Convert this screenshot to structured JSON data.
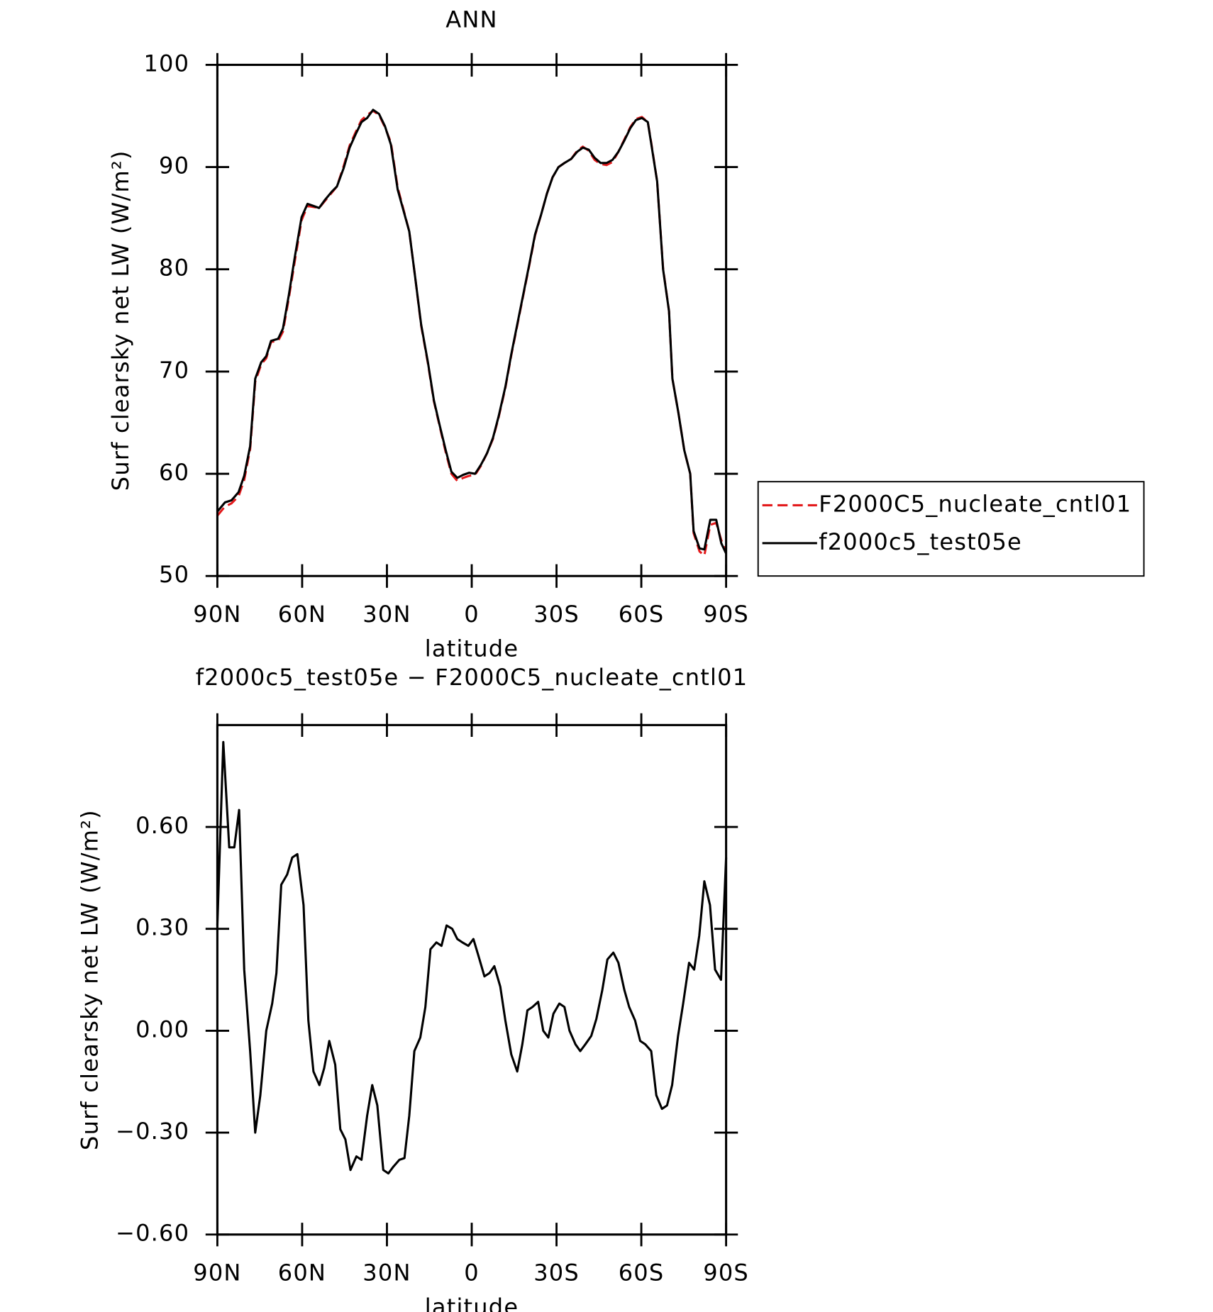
{
  "chart_data": [
    {
      "type": "line",
      "title": "ANN",
      "xlabel": "latitude",
      "ylabel": "Surf clearsky net LW (W/m²)",
      "x": [
        90,
        87.3,
        85,
        82.5,
        80.5,
        78.4,
        76.6,
        74.5,
        72.7,
        71,
        68.5,
        66.8,
        64.7,
        62.6,
        60.2,
        58.1,
        56,
        54,
        51.9,
        49.5,
        47.7,
        45.3,
        43.2,
        41.1,
        39,
        37,
        34.9,
        32.8,
        30.7,
        28.6,
        26.2,
        24.1,
        22.1,
        20,
        17.9,
        15.5,
        13.4,
        11.3,
        9.2,
        7.2,
        5.1,
        3,
        0.9,
        -1.2,
        -3.3,
        -5.4,
        -7.5,
        -9.5,
        -11.9,
        -14,
        -16.1,
        -18.2,
        -20.3,
        -22.4,
        -24.5,
        -26.6,
        -28.6,
        -30.7,
        -32.8,
        -35.2,
        -37.3,
        -39.3,
        -41.4,
        -43.5,
        -45.6,
        -47.7,
        -49.8,
        -51.9,
        -54,
        -56.1,
        -58.1,
        -60.2,
        -62.3,
        -63.5,
        -65.6,
        -67.7,
        -69.8,
        -71,
        -73.1,
        -75.2,
        -77.3,
        -78.5,
        -80.6,
        -82.3,
        -84.4,
        -86.5,
        -88.3,
        -90
      ],
      "series": [
        {
          "name": "F2000C5_nucleate_cntl01",
          "color": "#e31a1c",
          "linestyle": "dashed",
          "values": [
            55.9,
            56.8,
            57.1,
            57.8,
            59.4,
            62.4,
            69,
            70.7,
            71.3,
            72.9,
            73,
            73.9,
            77.2,
            80.8,
            84.8,
            86.2,
            86.1,
            86,
            86.7,
            87.5,
            88.1,
            90.1,
            92.1,
            93.4,
            94.6,
            95.1,
            95.5,
            95.1,
            93.9,
            92.4,
            88,
            85.8,
            83.7,
            79.2,
            74.5,
            70.8,
            67.1,
            64.6,
            62.1,
            60,
            59.3,
            59.6,
            59.8,
            59.9,
            60.8,
            62,
            63.4,
            65.5,
            68.4,
            71.6,
            74.5,
            77.4,
            80.3,
            83.3,
            85.3,
            87.4,
            89,
            90,
            90.4,
            90.8,
            91.6,
            92,
            91.6,
            90.7,
            90.3,
            90.2,
            90.5,
            91.5,
            92.7,
            93.9,
            94.7,
            94.9,
            94.4,
            92.4,
            88.6,
            80.1,
            75.9,
            69.3,
            66,
            62.3,
            60,
            54.2,
            52.4,
            52,
            55,
            55.2,
            53.5,
            52.3
          ]
        },
        {
          "name": "f2000c5_test05e",
          "color": "#000000",
          "linestyle": "solid",
          "values": [
            56.3,
            57.2,
            57.4,
            58.2,
            59.8,
            62.7,
            69.3,
            70.9,
            71.5,
            73,
            73.2,
            74.2,
            77.5,
            81.2,
            85.1,
            86.4,
            86.2,
            86,
            86.8,
            87.6,
            88.1,
            89.9,
            91.9,
            93.2,
            94.4,
            94.8,
            95.6,
            95.2,
            94,
            92.2,
            87.8,
            85.7,
            83.7,
            79.2,
            74.6,
            70.9,
            67.2,
            64.7,
            62.3,
            60.2,
            59.6,
            59.9,
            60.1,
            60,
            60.9,
            62,
            63.5,
            65.6,
            68.5,
            71.7,
            74.6,
            77.5,
            80.4,
            83.4,
            85.3,
            87.4,
            89,
            90,
            90.4,
            90.8,
            91.5,
            91.9,
            91.7,
            90.9,
            90.4,
            90.4,
            90.7,
            91.5,
            92.6,
            93.8,
            94.6,
            94.8,
            94.4,
            92.3,
            88.6,
            80,
            75.9,
            69.3,
            66,
            62.3,
            60,
            54.4,
            52.7,
            52.6,
            55.5,
            55.5,
            53.2,
            52.2
          ]
        }
      ],
      "xlim": [
        90,
        -90
      ],
      "xticks": [
        {
          "value": 90,
          "label": "90N"
        },
        {
          "value": 60,
          "label": "60N"
        },
        {
          "value": 30,
          "label": "30N"
        },
        0,
        {
          "value": -30,
          "label": "30S"
        },
        {
          "value": -60,
          "label": "60S"
        },
        {
          "value": -90,
          "label": "90S"
        }
      ],
      "ylim": [
        50,
        100
      ],
      "yticks": [
        50,
        60,
        70,
        80,
        90,
        100
      ],
      "legend": "right"
    },
    {
      "type": "line",
      "title": "f2000c5_test05e − F2000C5_nucleate_cntl01",
      "xlabel": "latitude",
      "ylabel": "Surf clearsky net LW (W/m²)",
      "x": [
        90,
        87.9,
        85.8,
        84,
        82.3,
        80.5,
        78.4,
        76.6,
        74.8,
        72.7,
        70.6,
        69.1,
        67.4,
        65.3,
        63.5,
        61.7,
        59.5,
        57.8,
        56,
        53.9,
        52.2,
        50.4,
        48.3,
        46.5,
        44.7,
        42.9,
        40.8,
        39,
        37,
        35.2,
        33.4,
        31.3,
        29.5,
        27.7,
        25.6,
        23.8,
        22.1,
        20.3,
        18.2,
        16.4,
        14.6,
        12.5,
        10.7,
        8.9,
        6.9,
        5.1,
        3.3,
        1.2,
        -0.6,
        -2.4,
        -4.5,
        -6.3,
        -8,
        -10.1,
        -11.9,
        -14,
        -16.1,
        -17.9,
        -19.7,
        -21.5,
        -23.5,
        -25.3,
        -27.1,
        -28.9,
        -31,
        -32.8,
        -34.6,
        -36.7,
        -38.4,
        -40.2,
        -42.3,
        -44.1,
        -46.2,
        -48,
        -50.1,
        -51.9,
        -54,
        -55.7,
        -57.8,
        -59.6,
        -61.4,
        -63.5,
        -65.3,
        -67.3,
        -69.1,
        -70.9,
        -73,
        -74.8,
        -76.9,
        -78.7,
        -80.5,
        -82.3,
        -84.3,
        -86.1,
        -88.2,
        -90
      ],
      "series": [
        {
          "color": "#000000",
          "linestyle": "solid",
          "values": [
            0.31,
            0.85,
            0.54,
            0.54,
            0.65,
            0.18,
            -0.06,
            -0.3,
            -0.19,
            0,
            0.08,
            0.17,
            0.43,
            0.46,
            0.51,
            0.52,
            0.37,
            0.03,
            -0.12,
            -0.16,
            -0.11,
            -0.03,
            -0.1,
            -0.29,
            -0.32,
            -0.41,
            -0.37,
            -0.38,
            -0.25,
            -0.16,
            -0.22,
            -0.41,
            -0.42,
            -0.4,
            -0.38,
            -0.375,
            -0.25,
            -0.06,
            -0.02,
            0.07,
            0.24,
            0.26,
            0.25,
            0.31,
            0.3,
            0.27,
            0.26,
            0.25,
            0.27,
            0.22,
            0.16,
            0.17,
            0.19,
            0.13,
            0.03,
            -0.07,
            -0.12,
            -0.04,
            0.06,
            0.07,
            0.085,
            0,
            -0.02,
            0.05,
            0.08,
            0.07,
            0,
            -0.04,
            -0.06,
            -0.04,
            -0.015,
            0.035,
            0.12,
            0.21,
            0.23,
            0.2,
            0.12,
            0.07,
            0.03,
            -0.03,
            -0.04,
            -0.06,
            -0.19,
            -0.23,
            -0.22,
            -0.16,
            -0.015,
            0.08,
            0.2,
            0.18,
            0.28,
            0.44,
            0.37,
            0.18,
            0.15,
            0.51
          ]
        }
      ],
      "xlim": [
        90,
        -90
      ],
      "xticks": [
        {
          "value": 90,
          "label": "90N"
        },
        {
          "value": 60,
          "label": "60N"
        },
        {
          "value": 30,
          "label": "30N"
        },
        0,
        {
          "value": -30,
          "label": "30S"
        },
        {
          "value": -60,
          "label": "60S"
        },
        {
          "value": -90,
          "label": "90S"
        }
      ],
      "ylim": [
        -0.6,
        0.9
      ],
      "yticks": [
        {
          "value": -0.6,
          "label": "−0.60"
        },
        {
          "value": -0.3,
          "label": "−0.30"
        },
        {
          "value": 0,
          "label": "0.00"
        },
        {
          "value": 0.3,
          "label": "0.30"
        },
        {
          "value": 0.6,
          "label": "0.60"
        }
      ]
    }
  ]
}
